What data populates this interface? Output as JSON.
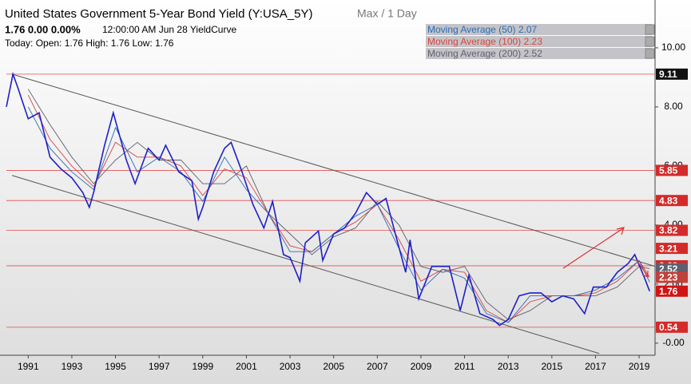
{
  "chart_data": {
    "type": "line",
    "title": "United States Government 5-Year Bond Yield (Y:USA_5Y)",
    "subtitle": "Max / 1 Day",
    "quote": "1.76 0.00 0.00%",
    "timestamp": "12:00:00 AM Jun 28  YieldCurve",
    "today": "Today:  Open: 1.76  High: 1.76  Low: 1.76",
    "xlim": [
      1990.0,
      2019.73
    ],
    "xticks": [
      1991,
      1993,
      1995,
      1997,
      1999,
      2001,
      2003,
      2005,
      2007,
      2009,
      2011,
      2013,
      2015,
      2017,
      2019
    ],
    "ylim": [
      -0.41,
      11.62
    ],
    "yticks": [
      {
        "value": 10,
        "label": "10.00"
      },
      {
        "value": 8,
        "label": "8.00"
      },
      {
        "value": 6,
        "label": "6.00"
      },
      {
        "value": 4,
        "label": "4.00"
      },
      {
        "value": 2,
        "label": "2.00"
      },
      {
        "value": 0,
        "label": "-0.00"
      }
    ],
    "series": [
      {
        "name": "USA_5Y",
        "color": "#1f1fc8",
        "x": [
          1990.0,
          1990.3,
          1990.5,
          1991.0,
          1991.5,
          1992.0,
          1992.5,
          1993.0,
          1993.5,
          1993.8,
          1994.0,
          1994.5,
          1994.9,
          1995.5,
          1995.9,
          1996.5,
          1997.0,
          1997.3,
          1997.9,
          1998.5,
          1998.8,
          1999.0,
          1999.5,
          2000.0,
          2000.3,
          2000.8,
          2001.3,
          2001.8,
          2002.2,
          2002.7,
          2003.0,
          2003.45,
          2003.7,
          2004.3,
          2004.5,
          2005.0,
          2005.5,
          2006.0,
          2006.5,
          2007.0,
          2007.4,
          2007.9,
          2008.3,
          2008.5,
          2008.9,
          2009.5,
          2009.9,
          2010.3,
          2010.8,
          2011.2,
          2011.7,
          2012.3,
          2012.6,
          2013.0,
          2013.5,
          2014.0,
          2014.5,
          2015.0,
          2015.5,
          2016.0,
          2016.5,
          2016.9,
          2017.5,
          2018.0,
          2018.5,
          2018.8,
          2019.2,
          2019.48
        ],
        "values": [
          8.0,
          9.11,
          8.7,
          7.6,
          7.8,
          6.3,
          5.9,
          5.6,
          5.1,
          4.6,
          5.1,
          6.7,
          7.8,
          6.2,
          5.4,
          6.6,
          6.2,
          6.7,
          5.8,
          5.5,
          4.2,
          4.6,
          5.8,
          6.6,
          6.8,
          5.8,
          4.7,
          3.9,
          4.8,
          3.0,
          2.9,
          2.1,
          3.4,
          3.8,
          2.8,
          3.7,
          3.9,
          4.4,
          5.1,
          4.7,
          4.9,
          3.5,
          2.4,
          3.5,
          1.5,
          2.6,
          2.6,
          2.6,
          1.1,
          2.3,
          1.0,
          0.8,
          0.6,
          0.8,
          1.6,
          1.7,
          1.7,
          1.4,
          1.6,
          1.5,
          1.0,
          1.9,
          1.9,
          2.4,
          2.7,
          3.0,
          2.3,
          1.76
        ]
      },
      {
        "name": "Moving Average (50) 2.07",
        "color": "#2b6cb8",
        "x": [
          1991,
          1992,
          1993,
          1994,
          1995,
          1996,
          1997,
          1998,
          1999,
          2000,
          2001,
          2002,
          2003,
          2004,
          2005,
          2006,
          2007,
          2008,
          2009,
          2010,
          2011,
          2012,
          2013,
          2014,
          2015,
          2016,
          2017,
          2018,
          2019,
          2019.48
        ],
        "values": [
          8.0,
          6.6,
          5.8,
          5.2,
          7.3,
          5.8,
          6.3,
          5.8,
          4.8,
          6.3,
          5.2,
          4.4,
          3.1,
          3.1,
          3.7,
          4.3,
          4.7,
          3.2,
          1.8,
          2.5,
          2.2,
          1.0,
          0.7,
          1.6,
          1.6,
          1.6,
          1.8,
          2.2,
          2.8,
          2.07
        ]
      },
      {
        "name": "Moving Average (100) 2.23",
        "color": "#d9453e",
        "x": [
          1991,
          1992,
          1993,
          1994,
          1995,
          1996,
          1997,
          1998,
          1999,
          2000,
          2001,
          2002,
          2003,
          2004,
          2005,
          2006,
          2007,
          2008,
          2009,
          2010,
          2011,
          2012,
          2013,
          2014,
          2015,
          2016,
          2017,
          2018,
          2019,
          2019.48
        ],
        "values": [
          8.4,
          6.9,
          6.0,
          5.3,
          6.8,
          6.3,
          6.3,
          6.0,
          5.0,
          5.9,
          5.6,
          4.4,
          3.3,
          3.1,
          3.7,
          4.1,
          4.7,
          3.5,
          2.1,
          2.5,
          2.4,
          1.1,
          0.7,
          1.4,
          1.6,
          1.6,
          1.7,
          2.1,
          2.8,
          2.23
        ]
      },
      {
        "name": "Moving Average (200) 2.52",
        "color": "#5f5f6e",
        "x": [
          1991,
          1992,
          1993,
          1994,
          1995,
          1996,
          1997,
          1998,
          1999,
          2000,
          2001,
          2002,
          2003,
          2004,
          2005,
          2006,
          2007,
          2008,
          2009,
          2010,
          2011,
          2012,
          2013,
          2014,
          2015,
          2016,
          2017,
          2018,
          2019,
          2019.48
        ],
        "values": [
          8.6,
          7.4,
          6.3,
          5.4,
          6.2,
          6.8,
          6.2,
          6.2,
          5.4,
          5.4,
          6.0,
          4.4,
          3.7,
          3.0,
          3.6,
          3.9,
          4.8,
          4.0,
          2.6,
          2.4,
          2.6,
          1.4,
          0.8,
          1.1,
          1.6,
          1.6,
          1.6,
          1.9,
          2.6,
          2.52
        ]
      }
    ],
    "trendlines": [
      {
        "x": [
          1990.26,
          2019.73
        ],
        "values": [
          9.11,
          2.6
        ]
      },
      {
        "x": [
          1990.26,
          2017.17
        ],
        "values": [
          5.68,
          -0.35
        ]
      }
    ],
    "levels": [
      {
        "value": 9.11,
        "color": "#111111"
      },
      {
        "value": 5.85,
        "color": "#d42a2a"
      },
      {
        "value": 4.83,
        "color": "#d42a2a"
      },
      {
        "value": 3.82,
        "color": "#d42a2a"
      },
      {
        "value": 2.62,
        "color": "#d42a2a"
      },
      {
        "value": 0.54,
        "color": "#d42a2a"
      }
    ],
    "markers": [
      {
        "value": 3.21,
        "color": "#d42a2a"
      },
      {
        "value": 2.52,
        "color": "#5f5f6e"
      },
      {
        "value": 2.23,
        "color": "#c0403a"
      },
      {
        "value": 1.76,
        "color": "#d01414"
      }
    ]
  }
}
